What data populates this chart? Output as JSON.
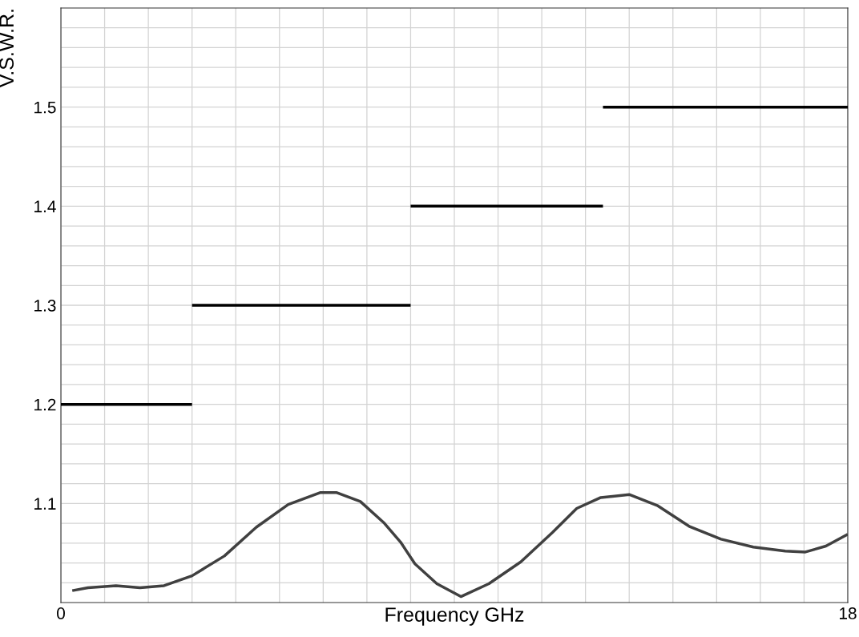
{
  "chart_data": {
    "type": "line",
    "xlabel": "Frequency GHz",
    "ylabel": "V.S.W.R.",
    "xlim": [
      0,
      18
    ],
    "ylim": [
      1.0,
      1.6
    ],
    "xticks": [
      0,
      {
        "value": 1,
        "label": null
      },
      {
        "value": 2,
        "label": null
      },
      {
        "value": 3,
        "label": null
      },
      {
        "value": 4,
        "label": null
      },
      {
        "value": 5,
        "label": null
      },
      {
        "value": 6,
        "label": null
      },
      {
        "value": 7,
        "label": null
      },
      {
        "value": 8,
        "label": null
      },
      {
        "value": 9,
        "label": null
      },
      {
        "value": 10,
        "label": null
      },
      {
        "value": 11,
        "label": null
      },
      {
        "value": 12,
        "label": null
      },
      {
        "value": 13,
        "label": null
      },
      {
        "value": 14,
        "label": null
      },
      {
        "value": 15,
        "label": null
      },
      {
        "value": 16,
        "label": null
      },
      {
        "value": 17,
        "label": null
      },
      18
    ],
    "yticks": [
      {
        "value": 1.02,
        "label": null
      },
      {
        "value": 1.04,
        "label": null
      },
      {
        "value": 1.06,
        "label": null
      },
      {
        "value": 1.08,
        "label": null
      },
      1.1,
      {
        "value": 1.12,
        "label": null
      },
      {
        "value": 1.14,
        "label": null
      },
      {
        "value": 1.16,
        "label": null
      },
      {
        "value": 1.18,
        "label": null
      },
      1.2,
      {
        "value": 1.22,
        "label": null
      },
      {
        "value": 1.24,
        "label": null
      },
      {
        "value": 1.26,
        "label": null
      },
      {
        "value": 1.28,
        "label": null
      },
      1.3,
      {
        "value": 1.32,
        "label": null
      },
      {
        "value": 1.34,
        "label": null
      },
      {
        "value": 1.36,
        "label": null
      },
      {
        "value": 1.38,
        "label": null
      },
      1.4,
      {
        "value": 1.42,
        "label": null
      },
      {
        "value": 1.44,
        "label": null
      },
      {
        "value": 1.46,
        "label": null
      },
      {
        "value": 1.48,
        "label": null
      },
      1.5,
      {
        "value": 1.52,
        "label": null
      },
      {
        "value": 1.54,
        "label": null
      },
      {
        "value": 1.56,
        "label": null
      },
      {
        "value": 1.58,
        "label": null
      }
    ],
    "grid": true,
    "marker": "none",
    "line_style": "solid",
    "series": [
      {
        "color": "#404040",
        "x": [
          0.26,
          0.62,
          1.26,
          1.81,
          2.36,
          3.0,
          3.74,
          4.47,
          5.2,
          5.94,
          6.3,
          6.85,
          7.4,
          7.77,
          8.1,
          8.6,
          9.15,
          9.79,
          10.52,
          11.25,
          11.8,
          12.35,
          13.0,
          13.64,
          14.37,
          15.1,
          15.84,
          16.57,
          17.03,
          17.5,
          18.0
        ],
        "values": [
          1.012,
          1.015,
          1.017,
          1.015,
          1.017,
          1.027,
          1.047,
          1.076,
          1.099,
          1.111,
          1.111,
          1.102,
          1.08,
          1.061,
          1.039,
          1.019,
          1.006,
          1.019,
          1.041,
          1.071,
          1.095,
          1.106,
          1.109,
          1.098,
          1.077,
          1.064,
          1.056,
          1.052,
          1.051,
          1.057,
          1.069
        ]
      },
      {
        "color": "#000000",
        "x": [
          0,
          3
        ],
        "values": [
          1.2,
          1.2
        ]
      },
      {
        "color": "#000000",
        "x": [
          3,
          8
        ],
        "values": [
          1.3,
          1.3
        ]
      },
      {
        "color": "#000000",
        "x": [
          8,
          12.4
        ],
        "values": [
          1.4,
          1.4
        ]
      },
      {
        "color": "#000000",
        "x": [
          12.4,
          18
        ],
        "values": [
          1.5,
          1.5
        ]
      }
    ]
  }
}
